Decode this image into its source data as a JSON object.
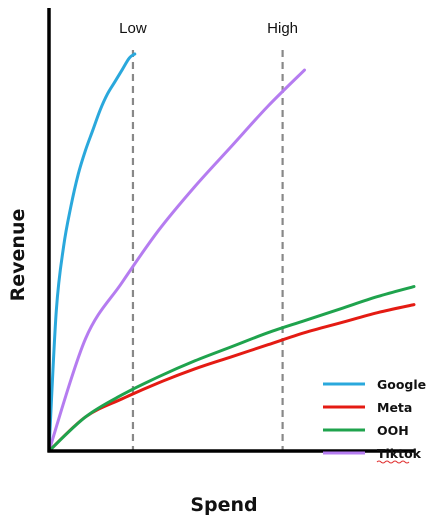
{
  "chart_data": {
    "type": "line",
    "xlabel": "Spend",
    "ylabel": "Revenue",
    "xlim": [
      0,
      100
    ],
    "ylim": [
      0,
      100
    ],
    "grid": false,
    "legend_position": "bottom-right",
    "reference_lines": [
      {
        "label": "Low",
        "x": 23,
        "color": "#888888",
        "style": "dashed"
      },
      {
        "label": "High",
        "x": 64,
        "color": "#888888",
        "style": "dashed"
      }
    ],
    "series": [
      {
        "name": "Google",
        "color": "#2aa8dc",
        "x": [
          0,
          2,
          4,
          6,
          8,
          10,
          12,
          14,
          16,
          18,
          20,
          22,
          23.5
        ],
        "y": [
          0,
          35,
          51,
          61,
          69,
          75,
          80,
          85,
          89,
          92,
          95,
          98,
          99
        ]
      },
      {
        "name": "Meta",
        "color": "#e41b13",
        "x": [
          0,
          10,
          20,
          30,
          40,
          50,
          60,
          70,
          80,
          90,
          100
        ],
        "y": [
          0,
          8.5,
          13,
          17,
          20.5,
          23.5,
          26.5,
          29.5,
          32,
          34.5,
          36.5
        ]
      },
      {
        "name": "OOH",
        "color": "#1fa34d",
        "x": [
          0,
          10,
          20,
          30,
          40,
          50,
          60,
          70,
          80,
          90,
          100
        ],
        "y": [
          0,
          8.5,
          14,
          18.5,
          22.5,
          26,
          29.5,
          32.5,
          35.5,
          38.5,
          41
        ]
      },
      {
        "name": "Tiktok",
        "color": "#b57cf0",
        "x": [
          0,
          10,
          20,
          30,
          40,
          50,
          60,
          70
        ],
        "y": [
          0,
          28,
          42,
          55,
          66,
          76,
          86,
          95
        ]
      }
    ]
  }
}
